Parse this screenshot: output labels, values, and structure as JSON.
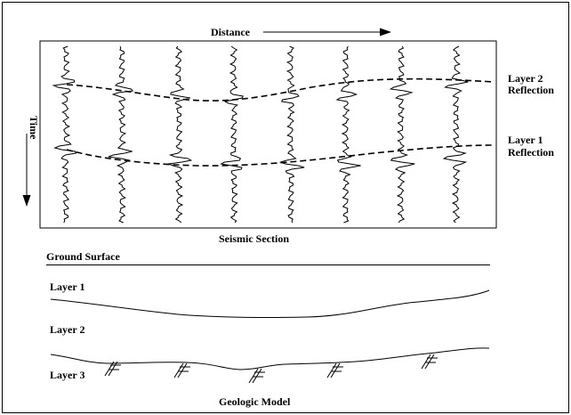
{
  "seismic": {
    "distance_label": "Distance",
    "time_label": "Time",
    "layer2_reflection": [
      "Layer 2",
      "Reflection"
    ],
    "layer1_reflection": [
      "Layer 1",
      "Reflection"
    ],
    "caption": "Seismic Section"
  },
  "geology": {
    "ground_surface": "Ground Surface",
    "layer1": "Layer 1",
    "layer2": "Layer 2",
    "layer3": "Layer 3",
    "caption": "Geologic Model"
  }
}
